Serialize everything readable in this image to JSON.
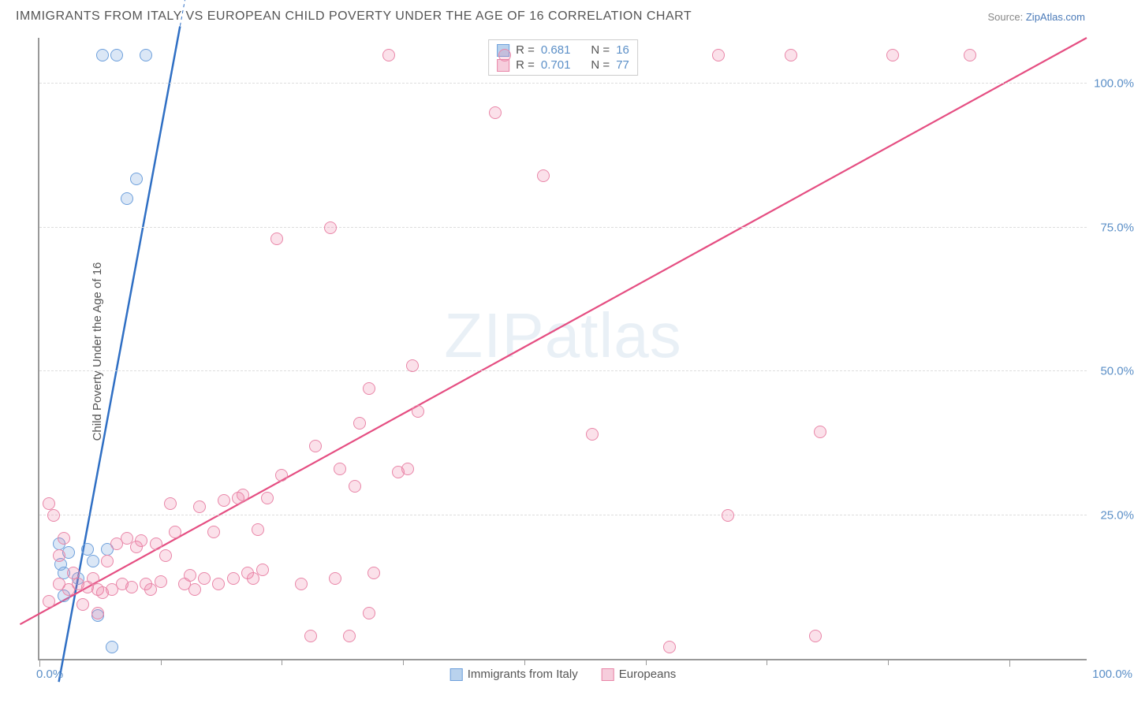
{
  "title": "IMMIGRANTS FROM ITALY VS EUROPEAN CHILD POVERTY UNDER THE AGE OF 16 CORRELATION CHART",
  "source_prefix": "Source: ",
  "source_name": "ZipAtlas.com",
  "ylabel": "Child Poverty Under the Age of 16",
  "watermark": "ZIPatlas",
  "chart": {
    "type": "scatter",
    "xlim": [
      0,
      108
    ],
    "ylim": [
      0,
      108
    ],
    "grid_color": "#dddddd",
    "axis_color": "#999999",
    "background_color": "#ffffff",
    "y_ticks": [
      25,
      50,
      75,
      100
    ],
    "y_tick_labels": [
      "25.0%",
      "50.0%",
      "75.0%",
      "100.0%"
    ],
    "x_major_ticks": [
      0,
      100
    ],
    "x_major_labels": [
      "0.0%",
      "100.0%"
    ],
    "x_minor_ticks": [
      12.5,
      25,
      37.5,
      50,
      62.5,
      75,
      87.5
    ],
    "marker_radius": 8,
    "marker_stroke_width": 1.5,
    "label_fontsize": 15,
    "label_color": "#5b8fc7"
  },
  "series": [
    {
      "id": "italy",
      "label": "Immigrants from Italy",
      "color_fill": "rgba(110,160,220,0.25)",
      "color_stroke": "#6ea0dc",
      "swatch_fill": "#b9d2ed",
      "swatch_border": "#6ea0dc",
      "R": "0.681",
      "N": "16",
      "regression": {
        "x1": 2,
        "y1": -4,
        "x2": 14.5,
        "y2": 110,
        "color": "#2f6fc4",
        "width": 2.5
      },
      "points": [
        [
          2.0,
          20.0
        ],
        [
          2.2,
          16.5
        ],
        [
          2.5,
          15.0
        ],
        [
          2.5,
          11.0
        ],
        [
          3.0,
          18.5
        ],
        [
          4.0,
          14.0
        ],
        [
          5.0,
          19.0
        ],
        [
          5.5,
          17.0
        ],
        [
          6.0,
          7.5
        ],
        [
          7.0,
          19.0
        ],
        [
          7.5,
          2.0
        ],
        [
          6.5,
          105.0
        ],
        [
          8.0,
          105.0
        ],
        [
          9.0,
          80.0
        ],
        [
          10.0,
          83.5
        ],
        [
          11.0,
          105.0
        ]
      ]
    },
    {
      "id": "europeans",
      "label": "Europeans",
      "color_fill": "rgba(235,120,160,0.22)",
      "color_stroke": "#e986a8",
      "swatch_fill": "#f6cddc",
      "swatch_border": "#e986a8",
      "R": "0.701",
      "N": "77",
      "regression": {
        "x1": -2,
        "y1": 6,
        "x2": 108,
        "y2": 108,
        "color": "#e54e82",
        "width": 2.2
      },
      "points": [
        [
          1.0,
          27.0
        ],
        [
          1.5,
          25.0
        ],
        [
          2.0,
          18.0
        ],
        [
          2.0,
          13.0
        ],
        [
          2.5,
          21.0
        ],
        [
          3.0,
          12.0
        ],
        [
          3.5,
          15.0
        ],
        [
          4.0,
          13.0
        ],
        [
          5.0,
          12.5
        ],
        [
          5.5,
          14.0
        ],
        [
          6.0,
          12.0
        ],
        [
          6.5,
          11.5
        ],
        [
          7.0,
          17.0
        ],
        [
          7.5,
          12.0
        ],
        [
          8.0,
          20.0
        ],
        [
          8.5,
          13.0
        ],
        [
          9.0,
          21.0
        ],
        [
          9.5,
          12.5
        ],
        [
          10.0,
          19.5
        ],
        [
          10.5,
          20.5
        ],
        [
          11.0,
          13.0
        ],
        [
          11.5,
          12.0
        ],
        [
          12.0,
          20.0
        ],
        [
          12.5,
          13.5
        ],
        [
          13.0,
          18.0
        ],
        [
          13.5,
          27.0
        ],
        [
          14.0,
          22.0
        ],
        [
          15.0,
          13.0
        ],
        [
          15.5,
          14.5
        ],
        [
          16.0,
          12.0
        ],
        [
          16.5,
          26.5
        ],
        [
          17.0,
          14.0
        ],
        [
          18.0,
          22.0
        ],
        [
          18.5,
          13.0
        ],
        [
          19.0,
          27.5
        ],
        [
          20.0,
          14.0
        ],
        [
          20.5,
          28.0
        ],
        [
          21.0,
          28.5
        ],
        [
          21.5,
          15.0
        ],
        [
          22.0,
          14.0
        ],
        [
          22.5,
          22.5
        ],
        [
          23.0,
          15.5
        ],
        [
          23.5,
          28.0
        ],
        [
          24.5,
          73.0
        ],
        [
          25.0,
          32.0
        ],
        [
          27.0,
          13.0
        ],
        [
          28.0,
          4.0
        ],
        [
          28.5,
          37.0
        ],
        [
          30.0,
          75.0
        ],
        [
          30.5,
          14.0
        ],
        [
          31.0,
          33.0
        ],
        [
          32.0,
          4.0
        ],
        [
          32.5,
          30.0
        ],
        [
          33.0,
          41.0
        ],
        [
          34.0,
          47.0
        ],
        [
          34.5,
          15.0
        ],
        [
          36.0,
          105.0
        ],
        [
          37.0,
          32.5
        ],
        [
          38.0,
          33.0
        ],
        [
          38.5,
          51.0
        ],
        [
          39.0,
          43.0
        ],
        [
          47.0,
          95.0
        ],
        [
          48.0,
          105.0
        ],
        [
          52.0,
          84.0
        ],
        [
          57.0,
          39.0
        ],
        [
          65.0,
          2.0
        ],
        [
          70.0,
          105.0
        ],
        [
          71.0,
          25.0
        ],
        [
          77.5,
          105.0
        ],
        [
          80.0,
          4.0
        ],
        [
          80.5,
          39.5
        ],
        [
          88.0,
          105.0
        ],
        [
          96.0,
          105.0
        ],
        [
          34.0,
          8.0
        ],
        [
          6.0,
          8.0
        ],
        [
          4.5,
          9.5
        ],
        [
          1.0,
          10.0
        ]
      ]
    }
  ],
  "legend_top": {
    "r_label": "R = ",
    "n_label": "N = "
  }
}
